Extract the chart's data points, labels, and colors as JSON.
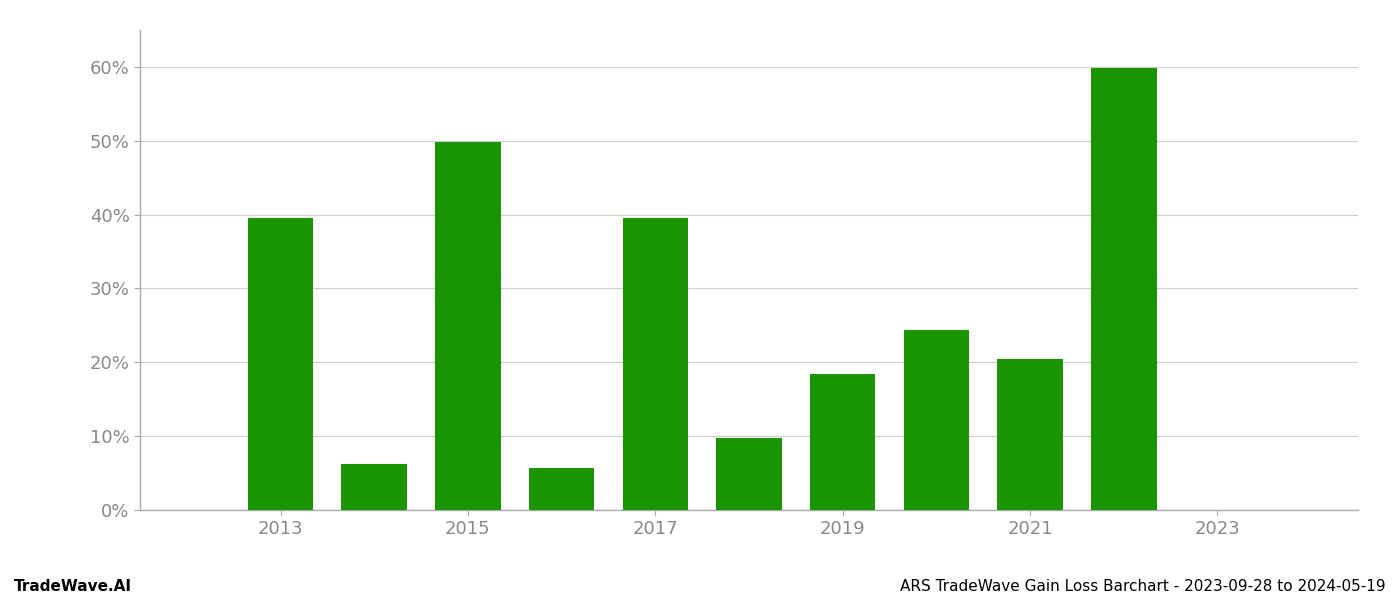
{
  "years": [
    2013,
    2014,
    2015,
    2016,
    2017,
    2018,
    2019,
    2020,
    2021,
    2022,
    2023
  ],
  "values": [
    0.395,
    0.062,
    0.499,
    0.057,
    0.395,
    0.097,
    0.184,
    0.244,
    0.205,
    0.599,
    0.0
  ],
  "bar_color": "#1a9400",
  "background_color": "#ffffff",
  "grid_color": "#cccccc",
  "ylabel_ticks": [
    "0%",
    "10%",
    "20%",
    "30%",
    "40%",
    "50%",
    "60%"
  ],
  "ytick_vals": [
    0.0,
    0.1,
    0.2,
    0.3,
    0.4,
    0.5,
    0.6
  ],
  "xlim": [
    2011.5,
    2024.5
  ],
  "ylim": [
    0.0,
    0.65
  ],
  "xtick_positions": [
    2013,
    2015,
    2017,
    2019,
    2021,
    2023
  ],
  "footer_left": "TradeWave.AI",
  "footer_right": "ARS TradeWave Gain Loss Barchart - 2023-09-28 to 2024-05-19",
  "bar_width": 0.7,
  "tick_fontsize": 13,
  "footer_fontsize": 11
}
